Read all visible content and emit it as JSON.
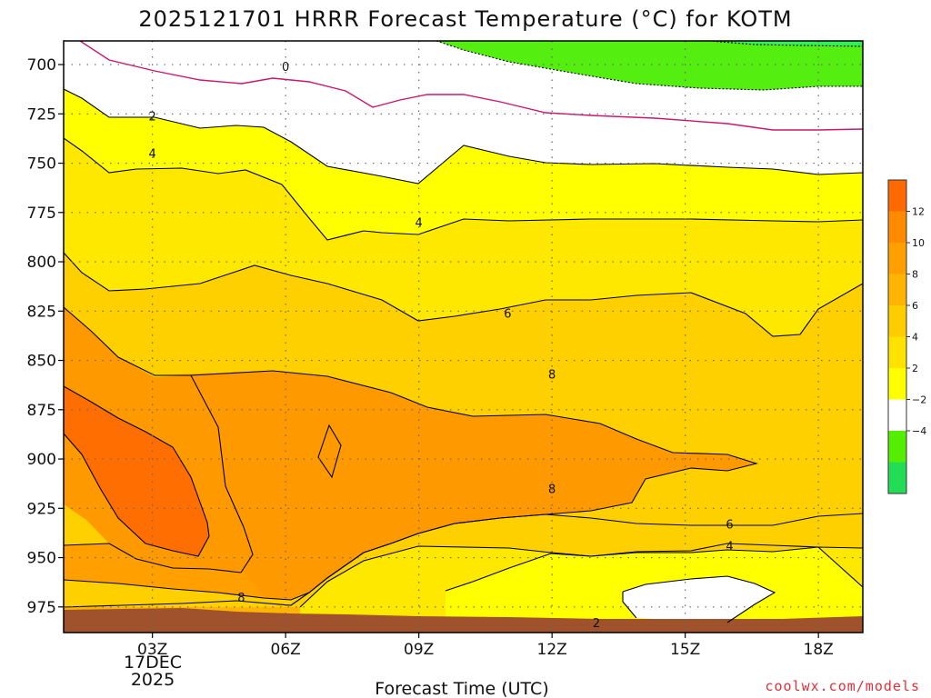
{
  "chart_data": {
    "type": "heatmap",
    "title": "2025121701 HRRR Forecast Temperature (°C) for KOTM",
    "xlabel": "Forecast Time (UTC)",
    "ylabel": "",
    "x_ticks": [
      "03Z",
      "06Z",
      "09Z",
      "12Z",
      "15Z",
      "18Z"
    ],
    "x_date_label": [
      "17DEC",
      "2025"
    ],
    "y_ticks": [
      "700",
      "725",
      "750",
      "775",
      "800",
      "825",
      "850",
      "875",
      "900",
      "925",
      "950",
      "975"
    ],
    "y_range": [
      688,
      988
    ],
    "x_range_hours": [
      1,
      19
    ],
    "contour_levels": [
      -4,
      -2,
      0,
      2,
      4,
      6,
      8,
      10,
      12
    ],
    "contour_labels": [
      {
        "text": "0",
        "hour": 6.0,
        "p": 701
      },
      {
        "text": "2",
        "hour": 3.0,
        "p": 726
      },
      {
        "text": "4",
        "hour": 3.0,
        "p": 745
      },
      {
        "text": "4",
        "hour": 9.0,
        "p": 780
      },
      {
        "text": "6",
        "hour": 11.0,
        "p": 826
      },
      {
        "text": "8",
        "hour": 12.0,
        "p": 857
      },
      {
        "text": "8",
        "hour": 12.0,
        "p": 915
      },
      {
        "text": "6",
        "hour": 16.0,
        "p": 933
      },
      {
        "text": "4",
        "hour": 16.0,
        "p": 944
      },
      {
        "text": "8",
        "hour": 5.0,
        "p": 970
      },
      {
        "text": "2",
        "hour": 13.0,
        "p": 983
      }
    ],
    "colorbar": {
      "ticks": [
        "12",
        "10",
        "8",
        "6",
        "4",
        "2",
        "−2",
        "−4"
      ],
      "colors": [
        "#ff6a00",
        "#ff8a00",
        "#ffa000",
        "#ffb400",
        "#ffcc00",
        "#ffe200",
        "#ffff00",
        "#ffffff",
        "#55ee00",
        "#22dd55"
      ]
    },
    "colors": {
      "ground": "#a0522d",
      "band_neg4": "#33ee55",
      "band_neg2": "#55ee11",
      "band_0": "#ffffff",
      "band_2": "#ffff00",
      "band_4": "#ffe800",
      "band_6": "#ffd000",
      "band_8": "#ffb400",
      "band_10": "#ff9900",
      "band_12": "#ff6e00",
      "zero_line": "#c8186c"
    }
  },
  "credit": "coolwx.com/models"
}
